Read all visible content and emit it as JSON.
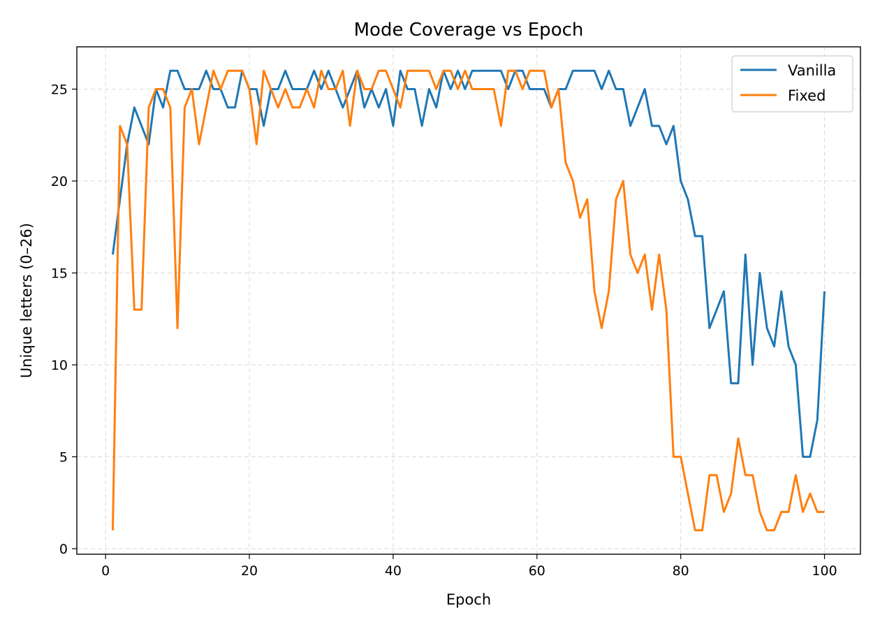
{
  "chart_data": {
    "type": "line",
    "title": "Mode Coverage vs Epoch",
    "xlabel": "Epoch",
    "ylabel": "Unique letters (0–26)",
    "xlim": [
      -4,
      105
    ],
    "ylim": [
      -0.3,
      27.3
    ],
    "xticks": [
      0,
      20,
      40,
      60,
      80,
      100
    ],
    "yticks": [
      0,
      5,
      10,
      15,
      20,
      25
    ],
    "grid": true,
    "legend_position": "top-right",
    "x": [
      1,
      2,
      3,
      4,
      5,
      6,
      7,
      8,
      9,
      10,
      11,
      12,
      13,
      14,
      15,
      16,
      17,
      18,
      19,
      20,
      21,
      22,
      23,
      24,
      25,
      26,
      27,
      28,
      29,
      30,
      31,
      32,
      33,
      34,
      35,
      36,
      37,
      38,
      39,
      40,
      41,
      42,
      43,
      44,
      45,
      46,
      47,
      48,
      49,
      50,
      51,
      52,
      53,
      54,
      55,
      56,
      57,
      58,
      59,
      60,
      61,
      62,
      63,
      64,
      65,
      66,
      67,
      68,
      69,
      70,
      71,
      72,
      73,
      74,
      75,
      76,
      77,
      78,
      79,
      80,
      81,
      82,
      83,
      84,
      85,
      86,
      87,
      88,
      89,
      90,
      91,
      92,
      93,
      94,
      95,
      96,
      97,
      98,
      99,
      100
    ],
    "series": [
      {
        "name": "Vanilla",
        "color": "#1f77b4",
        "values": [
          16,
          19,
          22,
          24,
          23,
          22,
          25,
          24,
          26,
          26,
          25,
          25,
          25,
          26,
          25,
          25,
          24,
          24,
          26,
          25,
          25,
          23,
          25,
          25,
          26,
          25,
          25,
          25,
          26,
          25,
          26,
          25,
          24,
          25,
          26,
          24,
          25,
          24,
          25,
          23,
          26,
          25,
          25,
          23,
          25,
          24,
          26,
          25,
          26,
          25,
          26,
          26,
          26,
          26,
          26,
          25,
          26,
          26,
          25,
          25,
          25,
          24,
          25,
          25,
          26,
          26,
          26,
          26,
          25,
          26,
          25,
          25,
          23,
          24,
          25,
          23,
          23,
          22,
          23,
          20,
          19,
          17,
          17,
          12,
          13,
          14,
          9,
          9,
          16,
          10,
          15,
          12,
          11,
          14,
          11,
          10,
          5,
          5,
          7,
          14
        ]
      },
      {
        "name": "Fixed",
        "color": "#ff7f0e",
        "values": [
          1,
          23,
          22,
          13,
          13,
          24,
          25,
          25,
          24,
          12,
          24,
          25,
          22,
          24,
          26,
          25,
          26,
          26,
          26,
          25,
          22,
          26,
          25,
          24,
          25,
          24,
          24,
          25,
          24,
          26,
          25,
          25,
          26,
          23,
          26,
          25,
          25,
          26,
          26,
          25,
          24,
          26,
          26,
          26,
          26,
          25,
          26,
          26,
          25,
          26,
          25,
          25,
          25,
          25,
          23,
          26,
          26,
          25,
          26,
          26,
          26,
          24,
          25,
          21,
          20,
          18,
          19,
          14,
          12,
          14,
          19,
          20,
          16,
          15,
          16,
          13,
          16,
          13,
          5,
          5,
          3,
          1,
          1,
          4,
          4,
          2,
          3,
          6,
          4,
          4,
          2,
          1,
          1,
          2,
          2,
          4,
          2,
          3,
          2,
          2
        ]
      }
    ]
  }
}
